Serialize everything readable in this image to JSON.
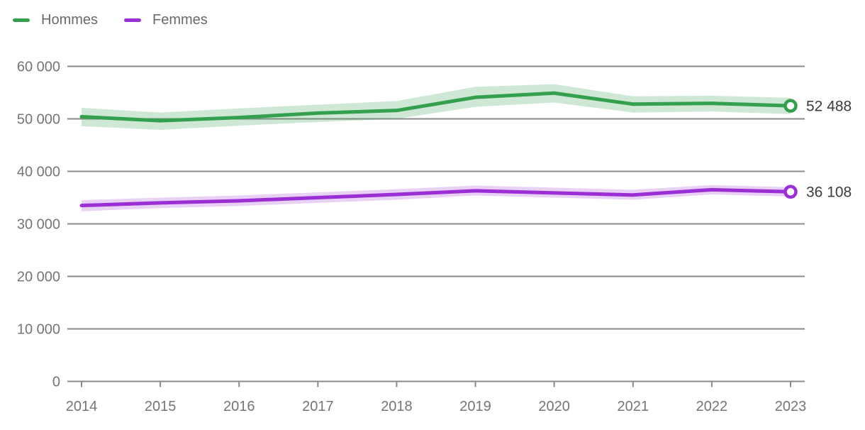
{
  "colors": {
    "grid": "#8a8a8a",
    "axis_text": "#757575",
    "value_text": "#3c3c3c",
    "legend_text": "#696969",
    "background": "#ffffff",
    "hommes_green": "#34a04e",
    "femmes_purple": "#9b2fd6"
  },
  "chart_data": {
    "type": "line",
    "title": "",
    "xlabel": "",
    "ylabel": "",
    "legend_position": "top-left",
    "grid": "horizontal",
    "ylim": [
      0,
      60000
    ],
    "x": [
      2014,
      2015,
      2016,
      2017,
      2018,
      2019,
      2020,
      2021,
      2022,
      2023
    ],
    "x_tick_labels": [
      "2014",
      "2015",
      "2016",
      "2017",
      "2018",
      "2019",
      "2020",
      "2021",
      "2022",
      "2023"
    ],
    "y_ticks": [
      0,
      10000,
      20000,
      30000,
      40000,
      50000,
      60000
    ],
    "y_tick_labels": [
      "0",
      "10 000",
      "20 000",
      "30 000",
      "40 000",
      "50 000",
      "60 000"
    ],
    "series": [
      {
        "key": "hommes",
        "name": "Hommes",
        "color": "#34a04e",
        "band_color": "rgba(52,160,78,0.24)",
        "values": [
          50400,
          49650,
          50250,
          51100,
          51600,
          54100,
          54900,
          52800,
          52950,
          52488
        ],
        "band_upper": [
          52100,
          51200,
          52000,
          52700,
          53400,
          56100,
          56600,
          54300,
          54400,
          54000
        ],
        "band_lower": [
          48600,
          47900,
          48700,
          49400,
          50000,
          52300,
          53100,
          51200,
          51400,
          50900
        ],
        "end_value": 52488,
        "end_label": "52 488"
      },
      {
        "key": "femmes",
        "name": "Femmes",
        "color": "#9b2fd6",
        "band_color": "rgba(155,47,214,0.22)",
        "values": [
          33500,
          34000,
          34400,
          35000,
          35600,
          36300,
          35900,
          35500,
          36500,
          36108
        ],
        "band_upper": [
          34500,
          35000,
          35400,
          36000,
          36600,
          37300,
          36900,
          36500,
          37400,
          37000
        ],
        "band_lower": [
          32400,
          33000,
          33400,
          34000,
          34600,
          35400,
          35000,
          34600,
          35600,
          35200
        ],
        "end_value": 36108,
        "end_label": "36 108"
      }
    ]
  }
}
